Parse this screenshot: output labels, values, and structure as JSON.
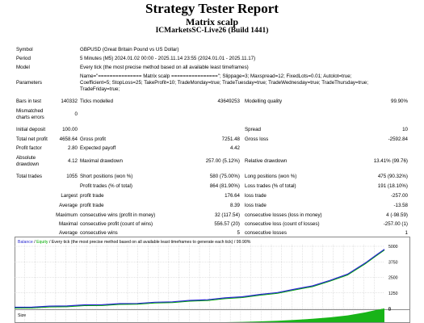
{
  "header": {
    "title": "Strategy Tester Report",
    "subtitle": "Matrix scalp",
    "server": "ICMarketsSC-Live26 (Build 1441)"
  },
  "settings": {
    "symbol_label": "Symbol",
    "symbol_value": "GBPUSD (Great Britain Pound vs US Dollar)",
    "period_label": "Period",
    "period_value": "5 Minutes (M5) 2024.01.02 00:00 - 2025.11.14 23:55 (2024.01.01 - 2025.11.17)",
    "model_label": "Model",
    "model_value": "Every tick (the most precise method based on all available least timeframes)",
    "parameters_label": "Parameters",
    "parameters_line1": "Name=\"=============== Matrix scalp ================\"; Slippage=3; Maxspread=12; FixedLots=0.01; Autolot=true;",
    "parameters_line2": "Coefficient=5; StopLoss=25; TakeProfit=10; TradeMonday=true; TradeTuesday=true; TradeWednesday=true; TradeThursday=true;",
    "parameters_line3": "TradeFriday=true;"
  },
  "summary": {
    "bars_label": "Bars in test",
    "bars_value": "140332",
    "ticks_label": "Ticks modelled",
    "ticks_value": "43649253",
    "quality_label": "Modelling quality",
    "quality_value": "99.90%",
    "mismatch_label1": "Mismatched",
    "mismatch_label2": "charts errors",
    "mismatch_value": "0",
    "deposit_label": "Initial deposit",
    "deposit_value": "100.00",
    "spread_label": "Spread",
    "spread_value": "10",
    "netprofit_label": "Total net profit",
    "netprofit_value": "4658.64",
    "grossprofit_label": "Gross profit",
    "grossprofit_value": "7251.48",
    "grossloss_label": "Gross loss",
    "grossloss_value": "-2592.84",
    "pf_label": "Profit factor",
    "pf_value": "2.80",
    "payoff_label": "Expected payoff",
    "payoff_value": "4.42",
    "absdd_label1": "Absolute",
    "absdd_label2": "drawdown",
    "absdd_value": "4.12",
    "maxdd_label": "Maximal drawdown",
    "maxdd_value": "257.00 (5.12%)",
    "reldd_label": "Relative drawdown",
    "reldd_value": "13.41% (99.76)",
    "trades_label": "Total trades",
    "trades_value": "1055",
    "short_label": "Short positions (won %)",
    "short_value": "580 (75.00%)",
    "long_label": "Long positions (won %)",
    "long_value": "475 (90.32%)",
    "ptrades_label": "Profit trades (% of total)",
    "ptrades_value": "864 (81.90%)",
    "ltrades_label": "Loss trades (% of total)",
    "ltrades_value": "191 (18.10%)",
    "largest_label": "Largest",
    "largest_profit_label": "profit trade",
    "largest_profit_value": "176.64",
    "largest_loss_label": "loss trade",
    "largest_loss_value": "-257.00",
    "average_label": "Average",
    "average_profit_label": "profit trade",
    "average_profit_value": "8.39",
    "average_loss_label": "loss trade",
    "average_loss_value": "-13.58",
    "maximum_label": "Maximum",
    "max_cw_money_label": "consecutive wins (profit in money)",
    "max_cw_money_value": "32 (117.54)",
    "max_cl_money_label": "consecutive losses (loss in money)",
    "max_cl_money_value": "4 (-98.59)",
    "maximal_label": "Maximal",
    "maxl_cp_label": "consecutive profit (count of wins)",
    "maxl_cp_value": "556.57 (20)",
    "maxl_cl_label": "consecutive loss (count of losses)",
    "maxl_cl_value": "-257.00 (1)",
    "avg2_label": "Average",
    "avg_cw_label": "consecutive wins",
    "avg_cw_value": "5",
    "avg_cl_label": "consecutive losses",
    "avg_cl_value": "1"
  },
  "chart_data": {
    "type": "line",
    "legend_balance": "Balance",
    "legend_sep": " / ",
    "legend_equity": "Equity",
    "legend_rest": " / Every tick (the most precise method based on all available least timeframes to generate each tick) / 99.90%",
    "yticks": [
      "5000",
      "3750",
      "2500",
      "1250",
      "0"
    ],
    "ylim": [
      0,
      5000
    ],
    "size_label": "Size",
    "size_tick": "0",
    "grid": true,
    "balance_color": "#2a2ad0",
    "equity_color": "#00aa00",
    "series": [
      {
        "name": "Balance",
        "x": [
          0,
          50,
          100,
          150,
          200,
          250,
          300,
          350,
          400,
          450,
          500,
          550,
          600,
          650,
          700,
          750,
          800,
          850,
          900,
          950,
          1000,
          1030,
          1055
        ],
        "y": [
          100,
          140,
          190,
          240,
          290,
          340,
          390,
          440,
          500,
          570,
          650,
          740,
          850,
          980,
          1130,
          1320,
          1560,
          1860,
          2260,
          2800,
          3650,
          4300,
          4758
        ]
      }
    ]
  }
}
